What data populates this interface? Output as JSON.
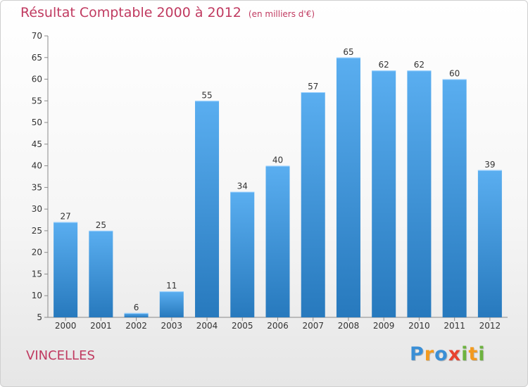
{
  "header": {
    "title": "Résultat Comptable 2000 à 2012",
    "subtitle": "(en milliers d'€)"
  },
  "footer": {
    "commune": "VINCELLES",
    "brand_letters": [
      {
        "char": "P",
        "color": "#3a8fd6"
      },
      {
        "char": "r",
        "color": "#f39a1e"
      },
      {
        "char": "o",
        "color": "#3a8fd6"
      },
      {
        "char": "x",
        "color": "#e8422f"
      },
      {
        "char": "i",
        "color": "#6db33f"
      },
      {
        "char": "t",
        "color": "#f39a1e"
      },
      {
        "char": "i",
        "color": "#6db33f"
      }
    ]
  },
  "colors": {
    "title": "#c03a60",
    "bar_top": "#5aaef0",
    "bar_bottom": "#2779bd",
    "axis": "#8a8a8a",
    "text": "#333333"
  },
  "chart_data": {
    "type": "bar",
    "title": "Résultat Comptable 2000 à 2012",
    "subtitle": "(en milliers d'€)",
    "xlabel": "",
    "ylabel": "",
    "categories": [
      "2000",
      "2001",
      "2002",
      "2003",
      "2004",
      "2005",
      "2006",
      "2007",
      "2008",
      "2009",
      "2010",
      "2011",
      "2012"
    ],
    "values": [
      27,
      25,
      6,
      11,
      55,
      34,
      40,
      57,
      65,
      62,
      62,
      60,
      39
    ],
    "ylim": [
      5,
      70
    ],
    "yticks": [
      5,
      10,
      15,
      20,
      25,
      30,
      35,
      40,
      45,
      50,
      55,
      60,
      65,
      70
    ],
    "grid": false,
    "data_labels": true
  }
}
